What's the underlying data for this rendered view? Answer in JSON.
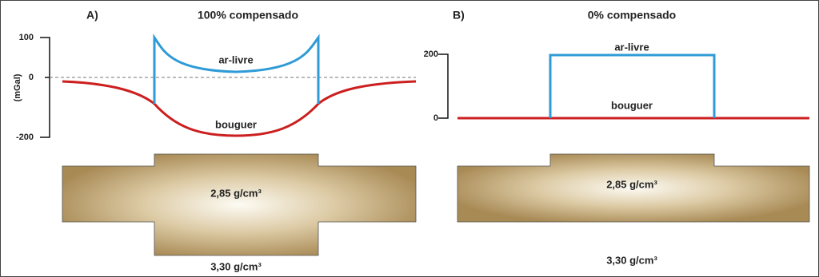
{
  "panel_a": {
    "label": "A)",
    "title": "100% compensado",
    "axis_label": "(mGal)",
    "ticks": [
      "100",
      "0",
      "-200"
    ],
    "curve_labels": [
      "ar-livre",
      "bouguer"
    ],
    "densities": [
      "2,85 g/cm³",
      "3,30 g/cm³"
    ]
  },
  "panel_b": {
    "label": "B)",
    "title": "0% compensado",
    "ticks": [
      "200",
      "0"
    ],
    "curve_labels": [
      "ar-livre",
      "bouguer"
    ],
    "densities": [
      "2,85 g/cm³",
      "3,30 g/cm³"
    ]
  }
}
